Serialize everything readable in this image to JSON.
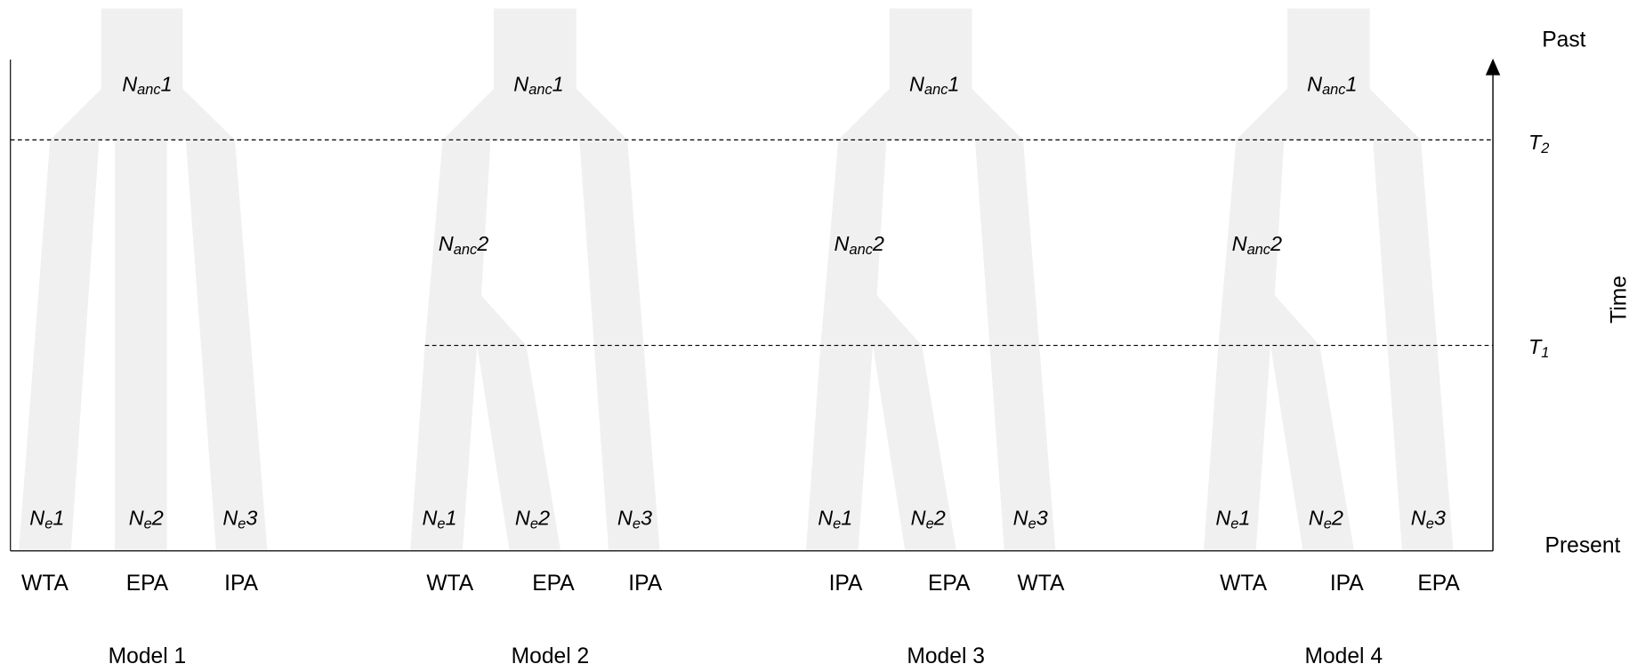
{
  "axis": {
    "top": "Past",
    "bottom": "Present",
    "label": "Time"
  },
  "times": [
    {
      "symbol": "T",
      "sub": "2"
    },
    {
      "symbol": "T",
      "sub": "1"
    }
  ],
  "models": [
    {
      "title": "Model 1",
      "populations": [
        "WTA",
        "EPA",
        "IPA"
      ],
      "ancestral": [
        {
          "symbol": "N",
          "sub": "anc",
          "index": "1"
        }
      ],
      "current": [
        {
          "symbol": "N",
          "sub": "e",
          "index": "1"
        },
        {
          "symbol": "N",
          "sub": "e",
          "index": "2"
        },
        {
          "symbol": "N",
          "sub": "e",
          "index": "3"
        }
      ]
    },
    {
      "title": "Model 2",
      "populations": [
        "WTA",
        "EPA",
        "IPA"
      ],
      "ancestral": [
        {
          "symbol": "N",
          "sub": "anc",
          "index": "1"
        },
        {
          "symbol": "N",
          "sub": "anc",
          "index": "2"
        }
      ],
      "current": [
        {
          "symbol": "N",
          "sub": "e",
          "index": "1"
        },
        {
          "symbol": "N",
          "sub": "e",
          "index": "2"
        },
        {
          "symbol": "N",
          "sub": "e",
          "index": "3"
        }
      ]
    },
    {
      "title": "Model 3",
      "populations": [
        "IPA",
        "EPA",
        "WTA"
      ],
      "ancestral": [
        {
          "symbol": "N",
          "sub": "anc",
          "index": "1"
        },
        {
          "symbol": "N",
          "sub": "anc",
          "index": "2"
        }
      ],
      "current": [
        {
          "symbol": "N",
          "sub": "e",
          "index": "1"
        },
        {
          "symbol": "N",
          "sub": "e",
          "index": "2"
        },
        {
          "symbol": "N",
          "sub": "e",
          "index": "3"
        }
      ]
    },
    {
      "title": "Model 4",
      "populations": [
        "WTA",
        "IPA",
        "EPA"
      ],
      "ancestral": [
        {
          "symbol": "N",
          "sub": "anc",
          "index": "1"
        },
        {
          "symbol": "N",
          "sub": "anc",
          "index": "2"
        }
      ],
      "current": [
        {
          "symbol": "N",
          "sub": "e",
          "index": "1"
        },
        {
          "symbol": "N",
          "sub": "e",
          "index": "2"
        },
        {
          "symbol": "N",
          "sub": "e",
          "index": "3"
        }
      ]
    }
  ]
}
